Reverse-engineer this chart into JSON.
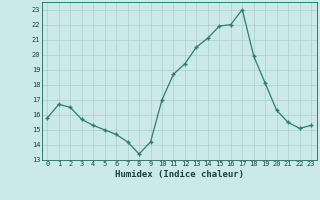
{
  "x": [
    0,
    1,
    2,
    3,
    4,
    5,
    6,
    7,
    8,
    9,
    10,
    11,
    12,
    13,
    14,
    15,
    16,
    17,
    18,
    19,
    20,
    21,
    22,
    23
  ],
  "y": [
    15.8,
    16.7,
    16.5,
    15.7,
    15.3,
    15.0,
    14.7,
    14.2,
    13.4,
    14.2,
    17.0,
    18.7,
    19.4,
    20.5,
    21.1,
    21.9,
    22.0,
    23.0,
    19.9,
    18.1,
    16.3,
    15.5,
    15.1,
    15.3
  ],
  "xlabel": "Humidex (Indice chaleur)",
  "ylim": [
    13,
    23.5
  ],
  "yticks": [
    13,
    14,
    15,
    16,
    17,
    18,
    19,
    20,
    21,
    22,
    23
  ],
  "xticks": [
    0,
    1,
    2,
    3,
    4,
    5,
    6,
    7,
    8,
    9,
    10,
    11,
    12,
    13,
    14,
    15,
    16,
    17,
    18,
    19,
    20,
    21,
    22,
    23
  ],
  "line_color": "#2e7d6e",
  "marker_color": "#2e7d6e",
  "bg_color": "#cce9e9",
  "grid_color_major": "#aacfcf",
  "grid_color_minor": "#bbdddd",
  "tick_color": "#1a4040",
  "label_color": "#1a4040"
}
